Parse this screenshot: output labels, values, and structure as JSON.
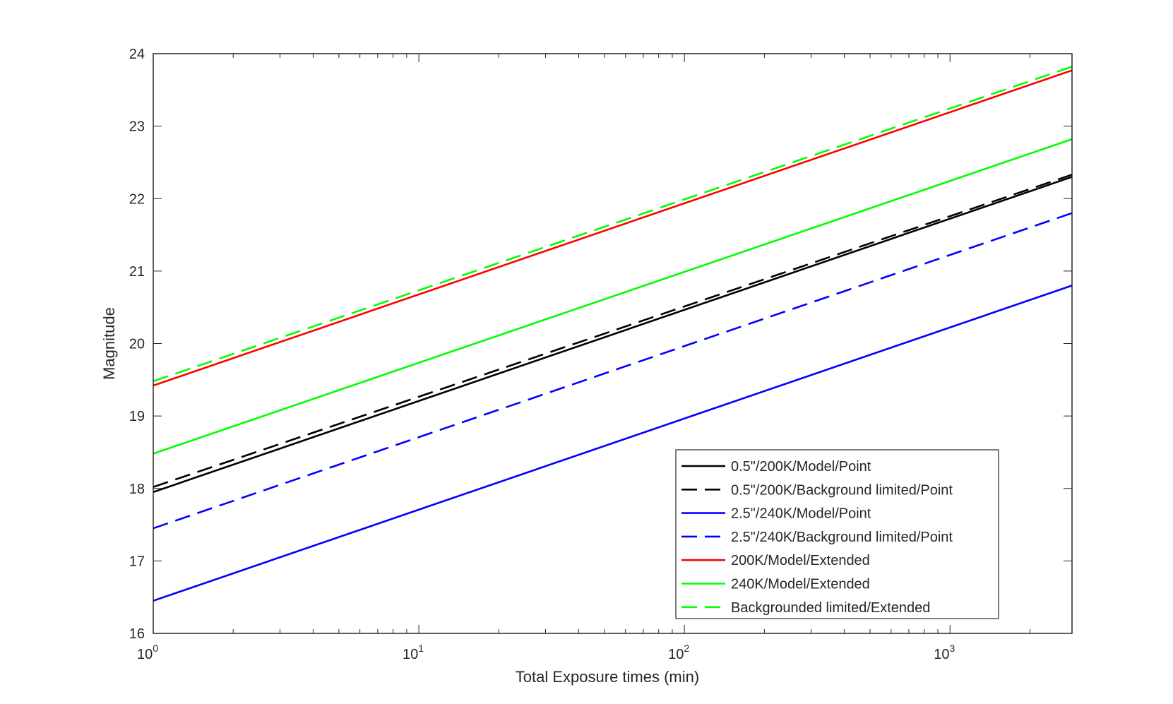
{
  "chart_data": {
    "type": "line",
    "title": "",
    "xlabel": "Total Exposure times (min)",
    "ylabel": "Magnitude",
    "xscale": "log",
    "xlim": [
      1,
      2880
    ],
    "ylim": [
      16,
      24
    ],
    "grid": false,
    "legend_position": "bottom-right",
    "xticks": [
      {
        "base": "10",
        "exp": "0",
        "value": 1
      },
      {
        "base": "10",
        "exp": "1",
        "value": 10
      },
      {
        "base": "10",
        "exp": "2",
        "value": 100
      },
      {
        "base": "10",
        "exp": "3",
        "value": 1000
      }
    ],
    "yticks": [
      "16",
      "17",
      "18",
      "19",
      "20",
      "21",
      "22",
      "23",
      "24"
    ],
    "series": [
      {
        "name": "0.5\"/200K/Model/Point",
        "color": "#000000",
        "style": "solid",
        "x": [
          1,
          2880
        ],
        "y": [
          17.95,
          22.3
        ]
      },
      {
        "name": "0.5\"/200K/Background limited/Point",
        "color": "#000000",
        "style": "dashed",
        "x": [
          1,
          2880
        ],
        "y": [
          18.02,
          22.33
        ]
      },
      {
        "name": "2.5\"/240K/Model/Point",
        "color": "#0000ff",
        "style": "solid",
        "x": [
          1,
          2880
        ],
        "y": [
          16.45,
          20.8
        ]
      },
      {
        "name": "2.5\"/240K/Background limited/Point",
        "color": "#0000ff",
        "style": "dashed",
        "x": [
          1,
          2880
        ],
        "y": [
          17.45,
          21.8
        ]
      },
      {
        "name": "200K/Model/Extended",
        "color": "#ff0000",
        "style": "solid",
        "x": [
          1,
          2880
        ],
        "y": [
          19.42,
          23.77
        ]
      },
      {
        "name": "240K/Model/Extended",
        "color": "#00ff00",
        "style": "solid",
        "x": [
          1,
          2880
        ],
        "y": [
          18.48,
          22.82
        ]
      },
      {
        "name": "Backgrounded limited/Extended",
        "color": "#00ff00",
        "style": "dashed",
        "x": [
          1,
          2880
        ],
        "y": [
          19.48,
          23.82
        ]
      }
    ]
  }
}
